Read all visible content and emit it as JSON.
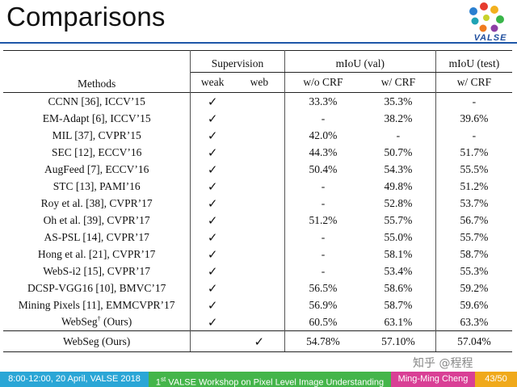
{
  "slide": {
    "title": "Comparisons",
    "logo_text": "VALSE"
  },
  "table": {
    "headers": {
      "methods": "Methods",
      "supervision": "Supervision",
      "miou_val": "mIoU (val)",
      "miou_test": "mIoU (test)",
      "weak": "weak",
      "web": "web",
      "wo_crf": "w/o CRF",
      "w_crf": "w/ CRF",
      "w_crf_test": "w/ CRF"
    },
    "check_glyph": "✓",
    "rows": [
      {
        "method": "CCNN [36], ICCV’15",
        "wo_crf": "33.3%",
        "w_crf": "35.3%",
        "test": "-"
      },
      {
        "method": "EM-Adapt [6], ICCV’15",
        "wo_crf": "-",
        "w_crf": "38.2%",
        "test": "39.6%"
      },
      {
        "method": "MIL [37], CVPR’15",
        "wo_crf": "42.0%",
        "w_crf": "-",
        "test": "-"
      },
      {
        "method": "SEC [12], ECCV’16",
        "wo_crf": "44.3%",
        "w_crf": "50.7%",
        "test": "51.7%"
      },
      {
        "method": "AugFeed [7], ECCV’16",
        "wo_crf": "50.4%",
        "w_crf": "54.3%",
        "test": "55.5%"
      },
      {
        "method": "STC [13], PAMI’16",
        "wo_crf": "-",
        "w_crf": "49.8%",
        "test": "51.2%"
      },
      {
        "method": "Roy et al. [38], CVPR’17",
        "wo_crf": "-",
        "w_crf": "52.8%",
        "test": "53.7%"
      },
      {
        "method": "Oh et al. [39], CVPR’17",
        "wo_crf": "51.2%",
        "w_crf": "55.7%",
        "test": "56.7%"
      },
      {
        "method": "AS-PSL [14], CVPR’17",
        "wo_crf": "-",
        "w_crf": "55.0%",
        "test": "55.7%"
      },
      {
        "method": "Hong et al. [21], CVPR’17",
        "wo_crf": "-",
        "w_crf": "58.1%",
        "test": "58.7%"
      },
      {
        "method": "WebS-i2 [15], CVPR’17",
        "wo_crf": "-",
        "w_crf": "53.4%",
        "test": "55.3%"
      },
      {
        "method": "DCSP-VGG16 [10], BMVC’17",
        "wo_crf": "56.5%",
        "w_crf": "58.6%",
        "test": "59.2%"
      },
      {
        "method": "Mining Pixels [11], EMMCVPR’17",
        "wo_crf": "56.9%",
        "w_crf": "58.7%",
        "test": "59.6%"
      }
    ],
    "ours_weak": {
      "method": "WebSeg",
      "dagger": "†",
      "suffix": " (Ours)",
      "wo_crf": "60.5%",
      "w_crf": "63.1%",
      "test": "63.3%"
    },
    "ours_web": {
      "method": "WebSeg (Ours)",
      "wo_crf": "54.78%",
      "w_crf": "57.10%",
      "test": "57.04%"
    }
  },
  "watermark": "知乎 @程程",
  "footer": {
    "date": "8:00-12:00, 20 April, VALSE 2018",
    "event_num": "1",
    "event_sup": "st",
    "event_rest": " VALSE Workshop on Pixel Level Image Understanding",
    "author": "Ming-Ming Cheng",
    "page": "43/50"
  }
}
